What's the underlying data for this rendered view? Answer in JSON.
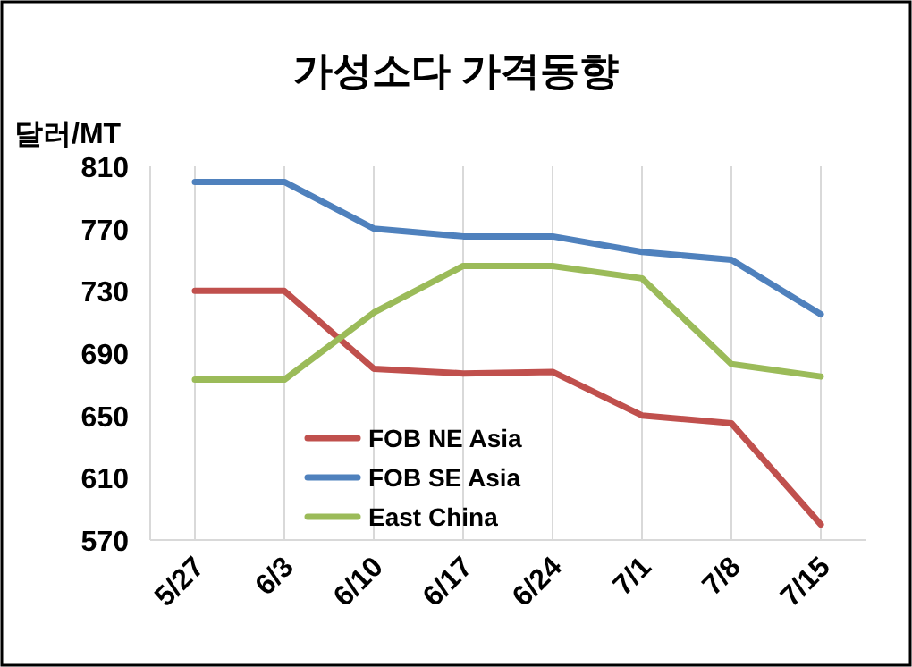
{
  "chart_data": {
    "type": "line",
    "title": "가성소다 가격동향",
    "ylabel": "달러/MT",
    "categories": [
      "5/27",
      "6/3",
      "6/10",
      "6/17",
      "6/24",
      "7/1",
      "7/8",
      "7/15"
    ],
    "series": [
      {
        "name": "FOB NE Asia",
        "color": "#c0504d",
        "values": [
          730,
          730,
          680,
          677,
          678,
          650,
          645,
          580
        ]
      },
      {
        "name": "FOB SE Asia",
        "color": "#4f81bd",
        "values": [
          800,
          800,
          770,
          765,
          765,
          755,
          750,
          715
        ]
      },
      {
        "name": "East China",
        "color": "#9bbb59",
        "values": [
          673,
          673,
          716,
          746,
          746,
          738,
          683,
          675
        ]
      }
    ],
    "ylim": [
      570,
      810
    ],
    "yticks": [
      570,
      610,
      650,
      690,
      730,
      770,
      810
    ],
    "grid": "x",
    "legend": "bottom",
    "marker": "none",
    "line_style": "solid"
  }
}
